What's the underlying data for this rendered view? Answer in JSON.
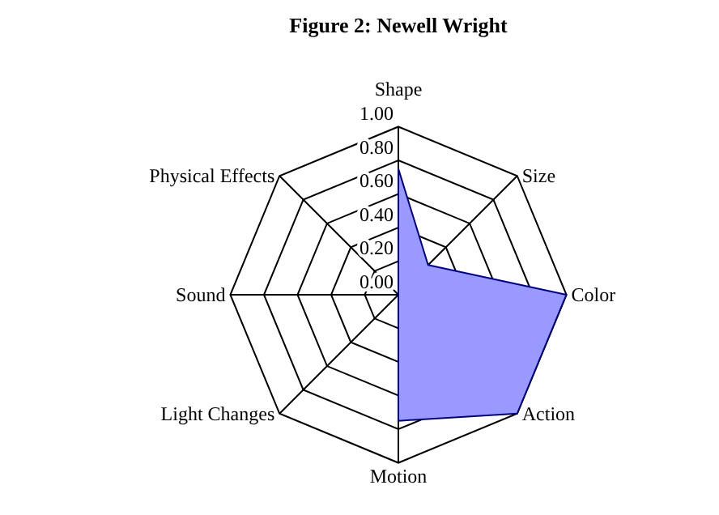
{
  "chart_data": {
    "type": "radar",
    "title": "Figure 2: Newell Wright",
    "categories": [
      "Shape",
      "Size",
      "Color",
      "Action",
      "Motion",
      "Light Changes",
      "Sound",
      "Physical Effects"
    ],
    "series": [
      {
        "color": "#9999ff",
        "values": [
          0.75,
          0.25,
          1.0,
          1.0,
          0.75,
          0,
          0,
          0
        ]
      }
    ],
    "ylim": [
      0,
      1
    ],
    "yticks": [
      {
        "value": 0,
        "label": "0.00"
      },
      {
        "value": 0.2,
        "label": "0.20"
      },
      {
        "value": 0.4,
        "label": "0.40"
      },
      {
        "value": 0.6,
        "label": "0.60"
      },
      {
        "value": 0.8,
        "label": "0.80"
      },
      {
        "value": 1,
        "label": "1.00"
      }
    ],
    "grid": true
  }
}
